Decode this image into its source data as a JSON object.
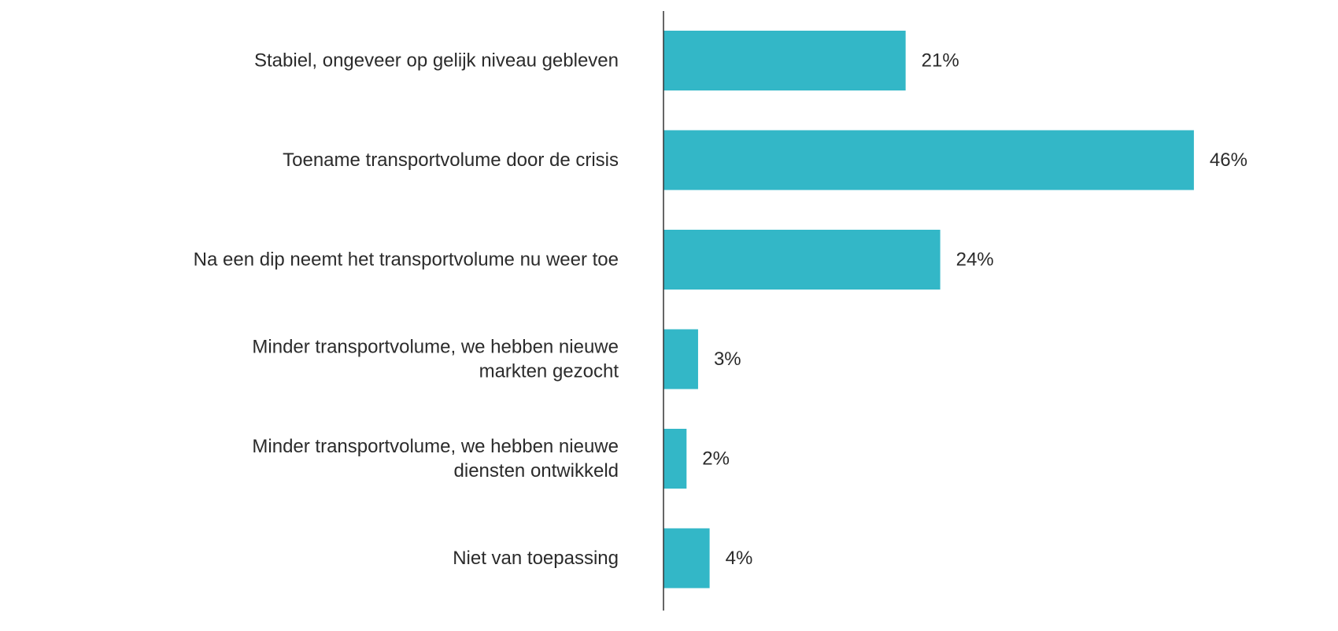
{
  "chart_data": {
    "type": "bar",
    "orientation": "horizontal",
    "categories": [
      "Stabiel, ongeveer op gelijk niveau gebleven",
      "Toename transportvolume door de crisis",
      "Na een dip neemt het transportvolume nu weer toe",
      "Minder transportvolume, we hebben nieuwe markten gezocht",
      "Minder transportvolume, we hebben nieuwe diensten ontwikkeld",
      "Niet van toepassing"
    ],
    "category_lines": [
      [
        "Stabiel, ongeveer op gelijk niveau gebleven"
      ],
      [
        "Toename transportvolume door de crisis"
      ],
      [
        "Na een dip neemt het transportvolume nu weer toe"
      ],
      [
        "Minder transportvolume, we hebben nieuwe",
        "markten gezocht"
      ],
      [
        "Minder transportvolume, we hebben nieuwe",
        "diensten ontwikkeld"
      ],
      [
        "Niet van toepassing"
      ]
    ],
    "values": [
      21,
      46,
      24,
      3,
      2,
      4
    ],
    "value_labels": [
      "21%",
      "46%",
      "24%",
      "3%",
      "2%",
      "4%"
    ],
    "unit": "%",
    "xlim": [
      0,
      50
    ],
    "title": "",
    "xlabel": "",
    "ylabel": "",
    "grid": false,
    "legend": "none",
    "colors": {
      "bar": "#33b7c7",
      "axis": "#333333",
      "text": "#2b2b2b"
    }
  }
}
